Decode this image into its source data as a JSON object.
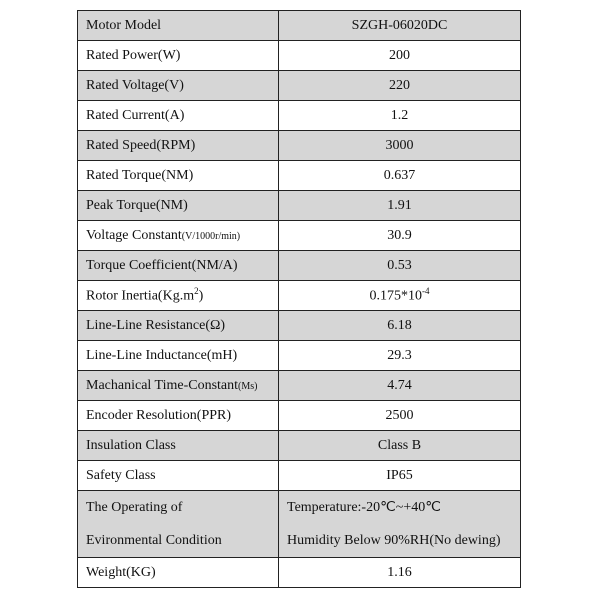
{
  "table": {
    "rows": [
      {
        "label": "Motor Model",
        "value": "SZGH-06020DC"
      },
      {
        "label": "Rated Power(W)",
        "value": "200"
      },
      {
        "label": "Rated Voltage(V)",
        "value": "220"
      },
      {
        "label": "Rated Current(A)",
        "value": "1.2"
      },
      {
        "label": "Rated Speed(RPM)",
        "value": "3000"
      },
      {
        "label": "Rated Torque(NM)",
        "value": "0.637"
      },
      {
        "label": "Peak Torque(NM)",
        "value": "1.91"
      },
      {
        "label": "Voltage Constant",
        "label_small": "(V/1000r/min)",
        "value": "30.9"
      },
      {
        "label": "Torque Coefficient(NM/A)",
        "value": "0.53"
      },
      {
        "label": "Rotor Inertia(Kg.m",
        "label_sup": "2",
        "label_end": ")",
        "value": "0.175*10",
        "value_sup": "-4"
      },
      {
        "label": "Line-Line Resistance(Ω)",
        "value": "6.18"
      },
      {
        "label": "Line-Line Inductance(mH)",
        "value": "29.3"
      },
      {
        "label": "Machanical Time-Constant",
        "label_small": "(Ms)",
        "value": "4.74"
      },
      {
        "label": "Encoder Resolution(PPR)",
        "value": "2500"
      },
      {
        "label": "Insulation Class",
        "value": "Class B"
      },
      {
        "label": "Safety Class",
        "value": "IP65"
      },
      {
        "label": [
          "The Operating of",
          "Evironmental Condition"
        ],
        "value": [
          "Temperature:-20℃~+40℃",
          "Humidity Below 90%RH(No dewing)"
        ]
      },
      {
        "label": "Weight(KG)",
        "value": "1.16"
      }
    ]
  }
}
